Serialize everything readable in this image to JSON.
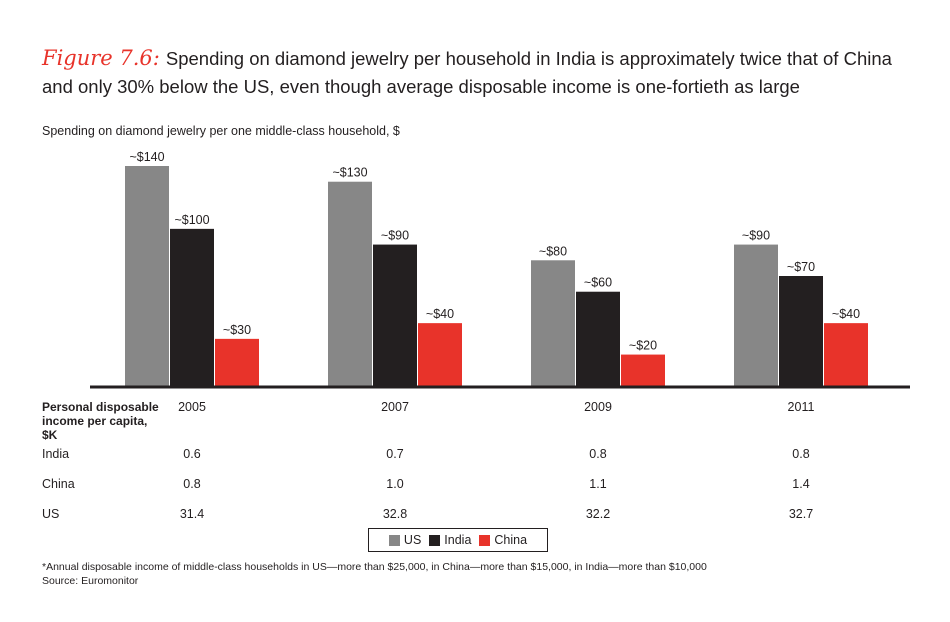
{
  "title": {
    "figure_label": "Figure 7.6:",
    "text": "Spending on diamond jewelry per household in India is approximately twice that of China and only 30% below the US, even though average disposable income is one-fortieth as large"
  },
  "colors": {
    "US": "#878787",
    "India": "#231f20",
    "China": "#e8332a"
  },
  "chart_data": {
    "type": "bar",
    "title": "Spending on diamond jewelry per one middle-class household, $",
    "categories": [
      "2005",
      "2007",
      "2009",
      "2011"
    ],
    "series": [
      {
        "name": "US",
        "values": [
          140,
          130,
          80,
          90
        ],
        "labels": [
          "~$140",
          "~$130",
          "~$80",
          "~$90"
        ]
      },
      {
        "name": "India",
        "values": [
          100,
          90,
          60,
          70
        ],
        "labels": [
          "~$100",
          "~$90",
          "~$60",
          "~$70"
        ]
      },
      {
        "name": "China",
        "values": [
          30,
          40,
          20,
          40
        ],
        "labels": [
          "~$30",
          "~$40",
          "~$20",
          "~$40"
        ]
      }
    ],
    "ylim": [
      0,
      140
    ],
    "legend": [
      "US",
      "India",
      "China"
    ]
  },
  "table": {
    "header": "Personal disposable income per capita, $K",
    "rows": [
      {
        "label": "India",
        "values": [
          "0.6",
          "0.7",
          "0.8",
          "0.8"
        ]
      },
      {
        "label": "China",
        "values": [
          "0.8",
          "1.0",
          "1.1",
          "1.4"
        ]
      },
      {
        "label": "US",
        "values": [
          "31.4",
          "32.8",
          "32.2",
          "32.7"
        ]
      }
    ]
  },
  "legend": {
    "us": "US",
    "india": "India",
    "china": "China"
  },
  "footnote": {
    "note": "*Annual disposable income of middle-class households in US—more than $25,000, in China—more than $15,000, in India—more than $10,000",
    "source": "Source: Euromonitor"
  }
}
